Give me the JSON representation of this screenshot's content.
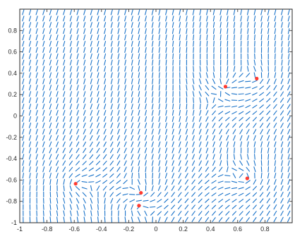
{
  "chart_data": {
    "type": "scatter",
    "title": "",
    "xlabel": "",
    "ylabel": "",
    "xlim": [
      -1,
      1
    ],
    "ylim": [
      -1,
      1
    ],
    "grid": false,
    "x_ticks": [
      -1,
      -0.8,
      -0.6,
      -0.4,
      -0.2,
      0,
      0.2,
      0.4,
      0.6,
      0.8
    ],
    "x_tick_labels": [
      "-1",
      "-0.8",
      "-0.6",
      "-0.4",
      "-0.2",
      "0",
      "0.2",
      "0.4",
      "0.6",
      "0.8"
    ],
    "y_ticks": [
      -1,
      -0.8,
      -0.6,
      -0.4,
      -0.2,
      0,
      0.2,
      0.4,
      0.6,
      0.8
    ],
    "y_tick_labels": [
      "-1",
      "-0.8",
      "-0.6",
      "-0.4",
      "-0.2",
      "0",
      "0.2",
      "0.4",
      "0.6",
      "0.8"
    ],
    "field": {
      "type": "direction-field",
      "color": "#1a73c9",
      "critical_points": [
        {
          "x": 0.51,
          "y": 0.275,
          "kind": "source",
          "sense": 1
        },
        {
          "x": 0.74,
          "y": 0.35,
          "kind": "center",
          "sense": 1
        },
        {
          "x": -0.59,
          "y": -0.635,
          "kind": "center",
          "sense": -1
        },
        {
          "x": -0.11,
          "y": -0.72,
          "kind": "center",
          "sense": 1
        },
        {
          "x": -0.125,
          "y": -0.84,
          "kind": "center",
          "sense": -1
        },
        {
          "x": 0.67,
          "y": -0.585,
          "kind": "center",
          "sense": 1
        }
      ]
    },
    "points": [
      {
        "x": 0.51,
        "y": 0.275
      },
      {
        "x": 0.74,
        "y": 0.35
      },
      {
        "x": -0.59,
        "y": -0.635
      },
      {
        "x": -0.11,
        "y": -0.72
      },
      {
        "x": -0.125,
        "y": -0.84
      },
      {
        "x": 0.67,
        "y": -0.585
      }
    ],
    "point_color": "#ff3b30"
  }
}
